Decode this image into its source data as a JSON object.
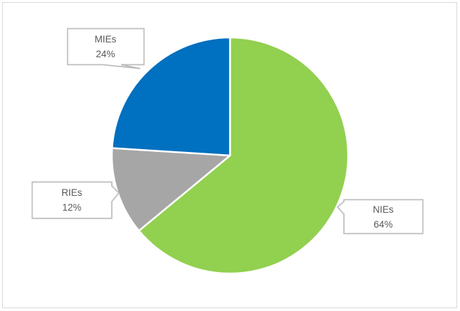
{
  "chart_data": {
    "type": "pie",
    "slices": [
      {
        "label": "NIEs",
        "value": 64,
        "value_label": "64%",
        "color": "#92D050"
      },
      {
        "label": "RIEs",
        "value": 12,
        "value_label": "12%",
        "color": "#A6A6A6"
      },
      {
        "label": "MIEs",
        "value": 24,
        "value_label": "24%",
        "color": "#0070C0"
      }
    ],
    "start_angle_deg": -90,
    "direction": "clockwise",
    "slice_border_color": "#FFFFFF",
    "legend": "none",
    "labels": "outside callouts showing category name and percent"
  },
  "styles": {
    "frame_border_color": "#D9D9D9",
    "callout_border_color": "#BDBDBD",
    "label_text_color": "#595959",
    "background_color": "#FFFFFF"
  }
}
